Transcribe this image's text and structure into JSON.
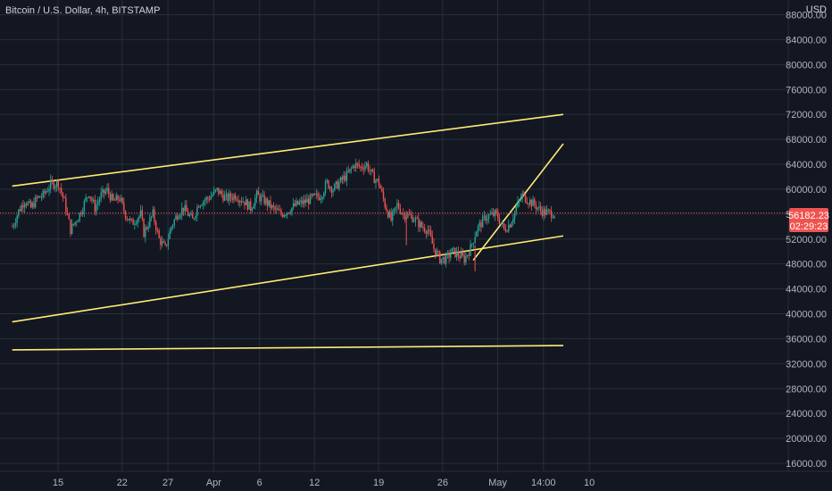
{
  "header": {
    "title": "Bitcoin / U.S. Dollar, 4h, BITSTAMP"
  },
  "axis": {
    "currency": "USD"
  },
  "colors": {
    "background": "#131722",
    "grid": "#2a2e39",
    "up": "#26a69a",
    "down": "#ef5350",
    "trendline": "#ffeb75",
    "axis_text": "#b2b5be"
  },
  "last_price": {
    "value": "56182.23",
    "countdown": "02:29:23"
  },
  "chart_data": {
    "type": "candlestick",
    "ylim": [
      14500,
      90000
    ],
    "yticks": [
      "88000.00",
      "84000.00",
      "80000.00",
      "76000.00",
      "72000.00",
      "68000.00",
      "64000.00",
      "60000.00",
      "56000.00",
      "52000.00",
      "48000.00",
      "44000.00",
      "40000.00",
      "36000.00",
      "32000.00",
      "28000.00",
      "24000.00",
      "20000.00",
      "16000.00"
    ],
    "xticks": [
      "15",
      "22",
      "27",
      "Apr",
      "6",
      "12",
      "19",
      "26",
      "May",
      "14:00",
      "10"
    ],
    "xtick_index": [
      30,
      72,
      102,
      132,
      162,
      198,
      240,
      282,
      318,
      348,
      378
    ],
    "candle_count": 356,
    "price_path": [
      [
        0,
        54000
      ],
      [
        4,
        56500
      ],
      [
        8,
        58200
      ],
      [
        12,
        57000
      ],
      [
        16,
        58500
      ],
      [
        20,
        59000
      ],
      [
        25,
        60800
      ],
      [
        30,
        61000
      ],
      [
        34,
        58000
      ],
      [
        38,
        53500
      ],
      [
        44,
        56000
      ],
      [
        50,
        59500
      ],
      [
        54,
        57000
      ],
      [
        58,
        59000
      ],
      [
        62,
        59800
      ],
      [
        66,
        58000
      ],
      [
        70,
        58600
      ],
      [
        74,
        56000
      ],
      [
        78,
        54500
      ],
      [
        84,
        56000
      ],
      [
        86,
        53000
      ],
      [
        92,
        56000
      ],
      [
        96,
        52000
      ],
      [
        100,
        50500
      ],
      [
        104,
        54000
      ],
      [
        108,
        56000
      ],
      [
        112,
        57000
      ],
      [
        118,
        55000
      ],
      [
        122,
        57800
      ],
      [
        128,
        58500
      ],
      [
        134,
        59800
      ],
      [
        140,
        58500
      ],
      [
        146,
        59000
      ],
      [
        152,
        58000
      ],
      [
        156,
        57000
      ],
      [
        160,
        59000
      ],
      [
        166,
        58000
      ],
      [
        170,
        57000
      ],
      [
        176,
        56000
      ],
      [
        180,
        56500
      ],
      [
        186,
        57500
      ],
      [
        192,
        58000
      ],
      [
        196,
        58500
      ],
      [
        202,
        59000
      ],
      [
        206,
        61000
      ],
      [
        210,
        60000
      ],
      [
        214,
        61000
      ],
      [
        220,
        62500
      ],
      [
        224,
        64000
      ],
      [
        228,
        63500
      ],
      [
        232,
        64000
      ],
      [
        236,
        62000
      ],
      [
        240,
        61000
      ],
      [
        244,
        57500
      ],
      [
        248,
        55000
      ],
      [
        252,
        57500
      ],
      [
        256,
        56000
      ],
      [
        262,
        55500
      ],
      [
        268,
        54000
      ],
      [
        272,
        53500
      ],
      [
        276,
        50500
      ],
      [
        280,
        48800
      ],
      [
        284,
        48800
      ],
      [
        288,
        50000
      ],
      [
        292,
        49500
      ],
      [
        296,
        48800
      ],
      [
        300,
        50500
      ],
      [
        304,
        53500
      ],
      [
        310,
        55500
      ],
      [
        316,
        56000
      ],
      [
        318,
        55500
      ],
      [
        322,
        53500
      ],
      [
        326,
        54500
      ],
      [
        330,
        57000
      ],
      [
        334,
        59000
      ],
      [
        338,
        58200
      ],
      [
        342,
        57500
      ],
      [
        346,
        56600
      ],
      [
        350,
        56182
      ]
    ],
    "trendlines": [
      {
        "name": "upper-channel",
        "p1": [
          0,
          60500
        ],
        "p2": [
          361,
          72000
        ],
        "extend": "right"
      },
      {
        "name": "lower-channel",
        "p1": [
          0,
          38700
        ],
        "p2": [
          361,
          52500
        ],
        "extend": "right"
      },
      {
        "name": "steep-support",
        "p1": [
          302,
          48600
        ],
        "p2": [
          361,
          67300
        ],
        "extend": "right"
      },
      {
        "name": "horizontal-support",
        "p1": [
          0,
          34200
        ],
        "p2": [
          361,
          34900
        ],
        "extend": "right"
      }
    ]
  }
}
